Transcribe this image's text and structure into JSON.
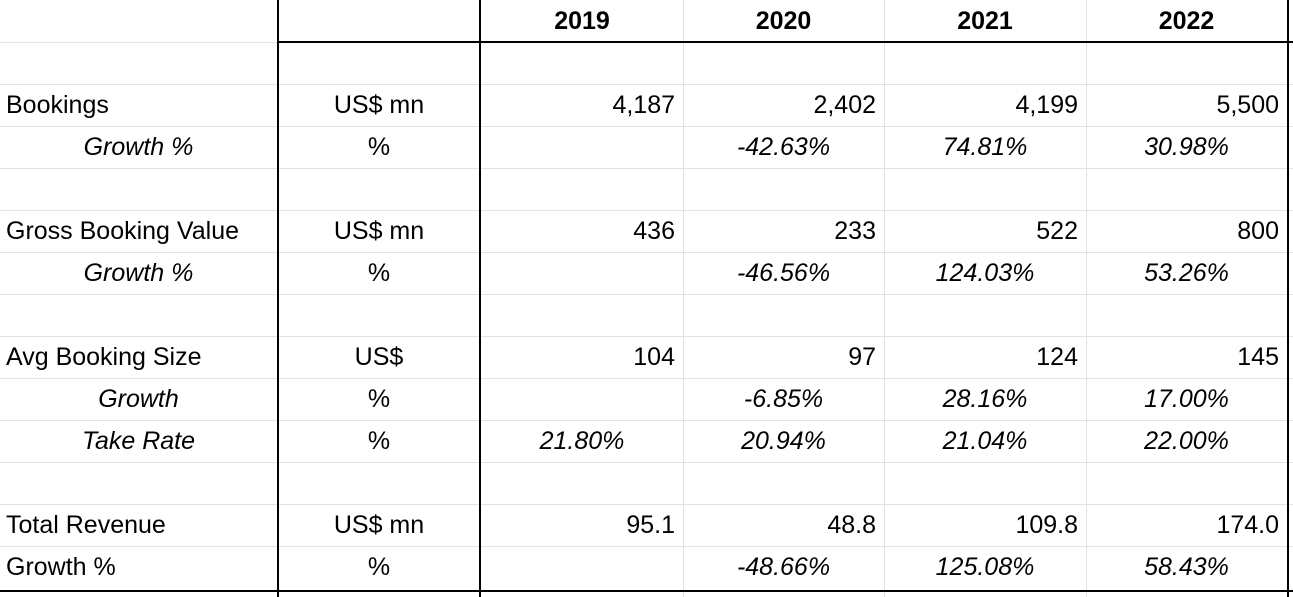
{
  "years": [
    "2019",
    "2020",
    "2021",
    "2022"
  ],
  "rows": [
    {
      "label": "",
      "unit": "",
      "values": [
        "",
        "",
        "",
        ""
      ]
    },
    {
      "label": "Bookings",
      "unit": "US$ mn",
      "values": [
        "4,187",
        "2,402",
        "4,199",
        "5,500"
      ]
    },
    {
      "label": "Growth %",
      "unit": "%",
      "values": [
        "",
        "-42.63%",
        "74.81%",
        "30.98%"
      ]
    },
    {
      "label": "",
      "unit": "",
      "values": [
        "",
        "",
        "",
        ""
      ]
    },
    {
      "label": "Gross Booking Value",
      "unit": "US$ mn",
      "values": [
        "436",
        "233",
        "522",
        "800"
      ]
    },
    {
      "label": "Growth %",
      "unit": "%",
      "values": [
        "",
        "-46.56%",
        "124.03%",
        "53.26%"
      ]
    },
    {
      "label": "",
      "unit": "",
      "values": [
        "",
        "",
        "",
        ""
      ]
    },
    {
      "label": "Avg Booking Size",
      "unit": "US$",
      "values": [
        "104",
        "97",
        "124",
        "145"
      ]
    },
    {
      "label": "Growth",
      "unit": "%",
      "values": [
        "",
        "-6.85%",
        "28.16%",
        "17.00%"
      ]
    },
    {
      "label": "Take Rate",
      "unit": "%",
      "values": [
        "21.80%",
        "20.94%",
        "21.04%",
        "22.00%"
      ]
    },
    {
      "label": "",
      "unit": "",
      "values": [
        "",
        "",
        "",
        ""
      ]
    },
    {
      "label": "Total Revenue",
      "unit": "US$ mn",
      "values": [
        "95.1",
        "48.8",
        "109.8",
        "174.0"
      ]
    },
    {
      "label": "Growth %",
      "unit": "%",
      "values": [
        "",
        "-48.66%",
        "125.08%",
        "58.43%"
      ]
    }
  ]
}
